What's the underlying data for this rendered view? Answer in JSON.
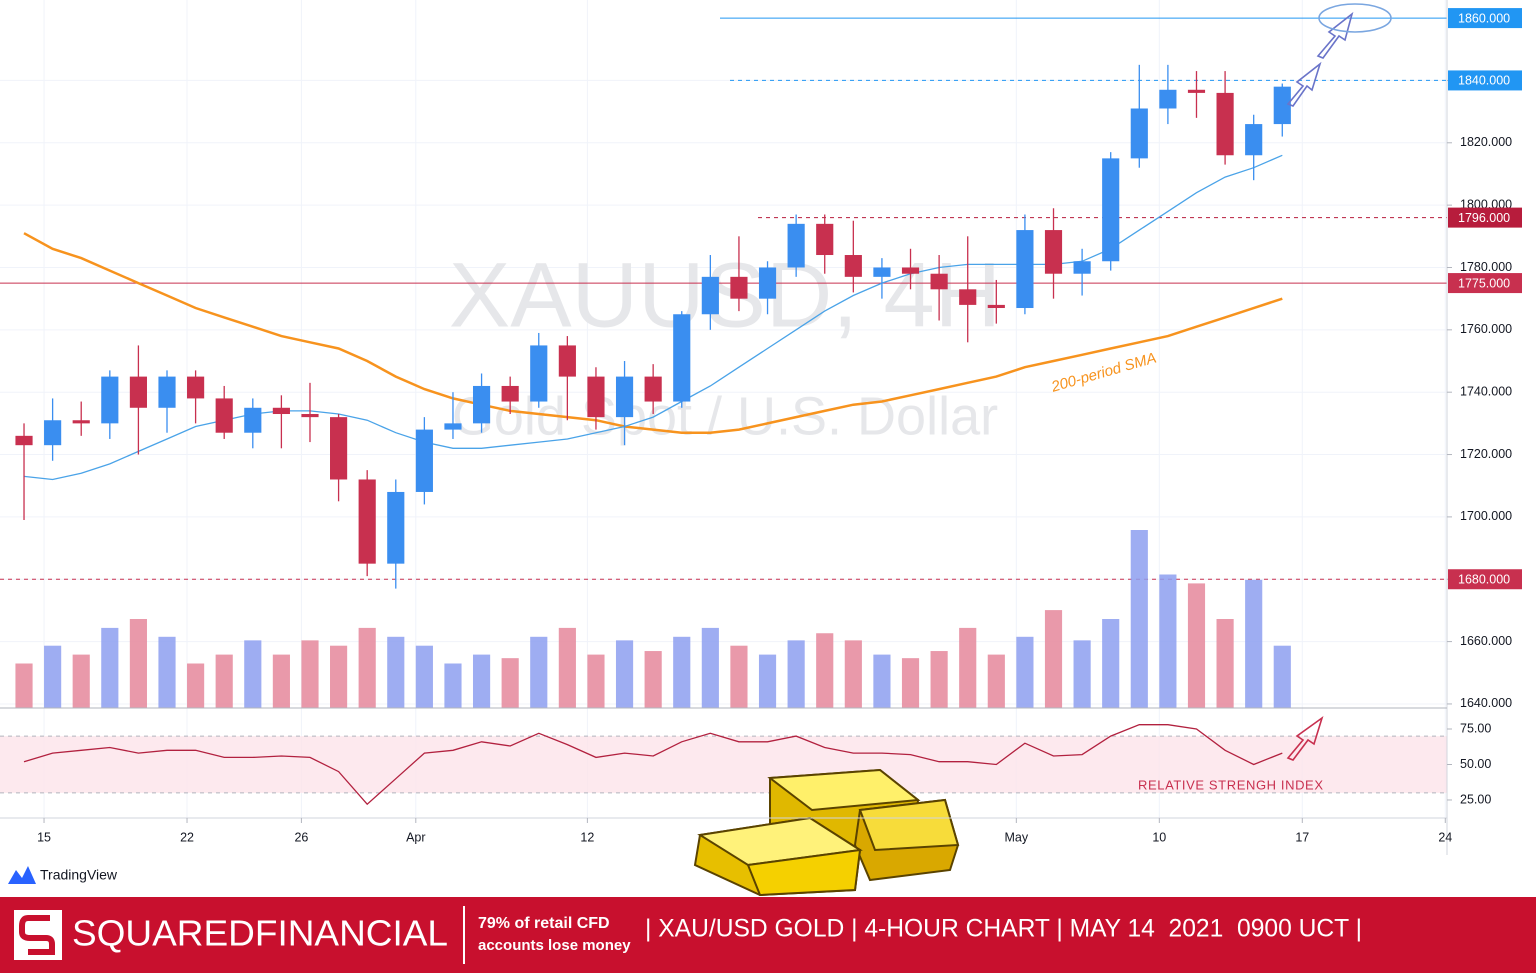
{
  "chart_data": {
    "type": "candlestick",
    "title": "XAUUSD, 4H",
    "subtitle": "Gold Spot / U.S. Dollar",
    "x": [
      -0.7,
      0.3,
      1.3,
      2.3,
      3.3,
      4.3,
      5.3,
      6.3,
      7.3,
      8.3,
      9.3,
      10.3,
      11.3,
      12.3,
      13.3,
      14.3,
      15.3,
      16.3,
      17.3,
      18.3,
      19.3,
      20.3,
      21.3,
      22.3,
      23.3,
      24.3,
      25.3,
      26.3,
      27.3,
      28.3,
      29.3,
      30.3,
      31.3,
      32.3,
      33.3,
      34.3,
      35.3,
      36.3,
      37.3,
      38.3,
      39.3,
      40.3,
      41.3,
      42.3,
      43.3
    ],
    "open": [
      1726,
      1723,
      1731,
      1730,
      1745,
      1735,
      1745,
      1738,
      1727,
      1735,
      1733,
      1732,
      1712,
      1685,
      1708,
      1728,
      1730,
      1742,
      1737,
      1755,
      1745,
      1732,
      1745,
      1737,
      1765,
      1777,
      1770,
      1780,
      1794,
      1784,
      1777,
      1780,
      1778,
      1773,
      1768,
      1767,
      1792,
      1778,
      1782,
      1815,
      1831,
      1837,
      1836,
      1816,
      1826
    ],
    "high": [
      1730,
      1738,
      1737,
      1747,
      1755,
      1747,
      1747,
      1742,
      1738,
      1739,
      1743,
      1733,
      1715,
      1712,
      1732,
      1740,
      1746,
      1745,
      1759,
      1758,
      1748,
      1750,
      1749,
      1766,
      1784,
      1790,
      1782,
      1797,
      1797,
      1795,
      1783,
      1786,
      1784,
      1790,
      1776,
      1797,
      1799,
      1786,
      1817,
      1845,
      1845,
      1843,
      1843,
      1829,
      1839
    ],
    "low": [
      1699,
      1718,
      1726,
      1725,
      1720,
      1727,
      1730,
      1725,
      1722,
      1722,
      1724,
      1705,
      1681,
      1677,
      1704,
      1725,
      1727,
      1733,
      1735,
      1731,
      1728,
      1723,
      1733,
      1735,
      1760,
      1766,
      1765,
      1777,
      1778,
      1772,
      1770,
      1773,
      1763,
      1756,
      1762,
      1765,
      1770,
      1771,
      1779,
      1812,
      1826,
      1828,
      1813,
      1808,
      1822
    ],
    "close": [
      1723,
      1731,
      1730,
      1745,
      1735,
      1745,
      1738,
      1727,
      1735,
      1733,
      1732,
      1712,
      1685,
      1708,
      1728,
      1730,
      1742,
      1737,
      1755,
      1745,
      1732,
      1745,
      1737,
      1765,
      1777,
      1770,
      1780,
      1794,
      1784,
      1777,
      1780,
      1778,
      1773,
      1768,
      1767,
      1792,
      1778,
      1782,
      1815,
      1831,
      1837,
      1836,
      1816,
      1826,
      1838
    ],
    "volume": [
      25,
      35,
      30,
      45,
      50,
      40,
      25,
      30,
      38,
      30,
      38,
      35,
      45,
      40,
      35,
      25,
      30,
      28,
      40,
      45,
      30,
      38,
      32,
      40,
      45,
      35,
      30,
      38,
      42,
      38,
      30,
      28,
      32,
      45,
      30,
      40,
      55,
      38,
      50,
      100,
      75,
      70,
      50,
      72,
      35
    ],
    "sma50": [
      1713,
      1712,
      1714,
      1717,
      1721,
      1725,
      1729,
      1731,
      1733,
      1734,
      1734,
      1733,
      1731,
      1727,
      1724,
      1722,
      1722,
      1723,
      1724,
      1725,
      1727,
      1729,
      1732,
      1737,
      1742,
      1748,
      1754,
      1760,
      1766,
      1771,
      1775,
      1778,
      1780,
      1781,
      1781,
      1781,
      1781,
      1782,
      1786,
      1792,
      1798,
      1804,
      1809,
      1812,
      1816
    ],
    "sma200": [
      1791,
      1786,
      1783,
      1779,
      1775,
      1771,
      1767,
      1764,
      1761,
      1758,
      1756,
      1754,
      1750,
      1745,
      1741,
      1738,
      1736,
      1734,
      1733,
      1732,
      1731,
      1729,
      1728,
      1727,
      1727,
      1728,
      1730,
      1732,
      1734,
      1736,
      1737,
      1739,
      1741,
      1743,
      1745,
      1748,
      1750,
      1752,
      1754,
      1756,
      1758,
      1761,
      1764,
      1767,
      1770
    ],
    "rsi": [
      52,
      58,
      60,
      62,
      58,
      60,
      60,
      55,
      55,
      56,
      55,
      45,
      22,
      40,
      58,
      60,
      66,
      63,
      72,
      64,
      55,
      58,
      56,
      66,
      72,
      66,
      66,
      70,
      62,
      58,
      58,
      57,
      52,
      52,
      50,
      65,
      56,
      57,
      70,
      78,
      78,
      75,
      60,
      50,
      58
    ],
    "up_color": "#3a8ef0",
    "down_color": "#c8304f",
    "volume_up_color": "#8d9ff0",
    "volume_down_color": "#e5879b",
    "sma50_color": "#4aa3e8",
    "sma200_color": "#f7931e",
    "rsi_color": "#b2213f",
    "xlim": [
      -1.54,
      49.06
    ],
    "xticks": [
      {
        "value": 0,
        "label": "15"
      },
      {
        "value": 5,
        "label": "22"
      },
      {
        "value": 9,
        "label": "26"
      },
      {
        "value": 13,
        "label": "Apr"
      },
      {
        "value": 19,
        "label": "12"
      },
      {
        "value": 34,
        "label": "May"
      },
      {
        "value": 39,
        "label": "10"
      },
      {
        "value": 44,
        "label": "17"
      },
      {
        "value": 49,
        "label": "24"
      }
    ],
    "ylim": [
      1638.7,
      1865.8
    ],
    "yticks": [
      {
        "value": 1640,
        "label": "1640.000"
      },
      {
        "value": 1660,
        "label": "1660.000"
      },
      {
        "value": 1680,
        "label": "1680.000"
      },
      {
        "value": 1700,
        "label": "1700.000"
      },
      {
        "value": 1720,
        "label": "1720.000"
      },
      {
        "value": 1740,
        "label": "1740.000"
      },
      {
        "value": 1760,
        "label": "1760.000"
      },
      {
        "value": 1780,
        "label": "1780.000"
      },
      {
        "value": 1800,
        "label": "1800.000"
      },
      {
        "value": 1820,
        "label": "1820.000"
      },
      {
        "value": 1840,
        "label": "1840.000"
      }
    ],
    "levels": [
      {
        "value": 1860,
        "label": "1860.000",
        "color": "#2196f3",
        "dashed": false
      },
      {
        "value": 1840,
        "label": "1840.000",
        "color": "#2196f3",
        "dashed": true
      },
      {
        "value": 1796,
        "label": "1796.000",
        "color": "#b71c3c",
        "dashed": true
      },
      {
        "value": 1775,
        "label": "1775.000",
        "color": "#c8304f",
        "dashed": false
      },
      {
        "value": 1680,
        "label": "1680.000",
        "color": "#c8304f",
        "dashed": true
      }
    ],
    "rsi_ylim": [
      12.3,
      89.8
    ],
    "rsi_yticks": [
      {
        "value": 25,
        "label": "25.00"
      },
      {
        "value": 50,
        "label": "50.00"
      },
      {
        "value": 75,
        "label": "75.00"
      }
    ],
    "rsi_band": [
      30,
      70
    ],
    "grid": true,
    "annotations": [
      "200-period SMA",
      "RELATIVE STRENGH INDEX"
    ]
  },
  "branding": {
    "platform": "TradingView",
    "company": "SQUAREDFINANCIAL",
    "risk_line1": "79% of retail CFD",
    "risk_line2": "accounts lose money",
    "caption": "| XAU/USD GOLD | 4-HOUR CHART | MAY 14  2021  0900 UCT |"
  }
}
